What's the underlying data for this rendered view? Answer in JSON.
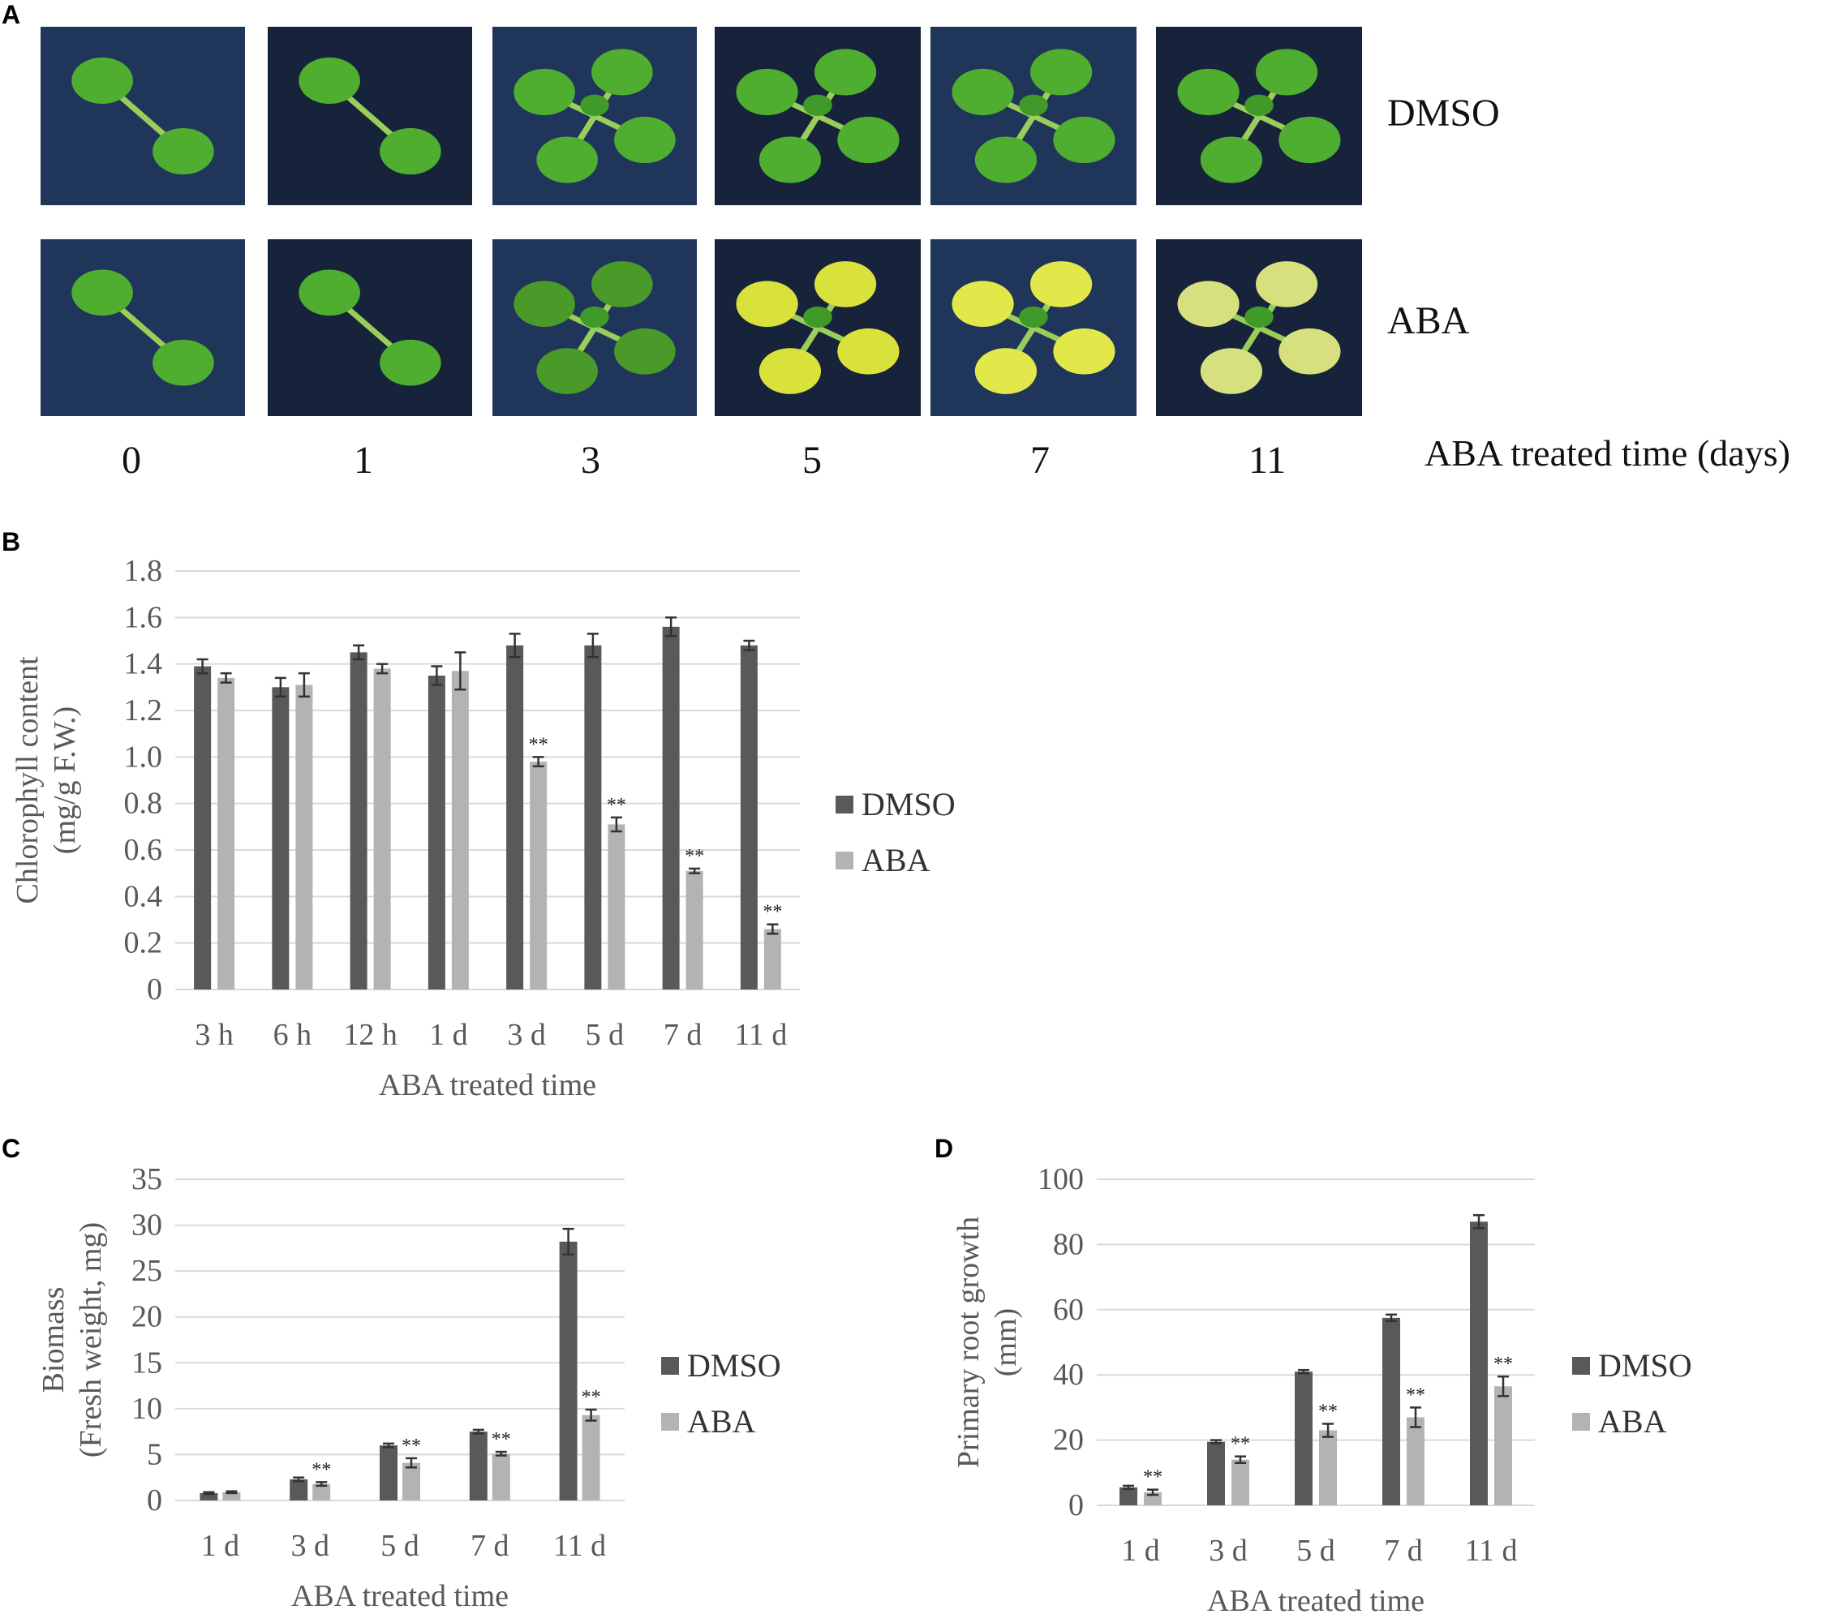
{
  "panelA": {
    "letter": "A",
    "rows": [
      "DMSO",
      "ABA"
    ],
    "days": [
      "0",
      "1",
      "3",
      "5",
      "7",
      "11"
    ],
    "xcaption": "ABA treated time (days)"
  },
  "colors": {
    "DMSO": "#595959",
    "ABA": "#b3b3b3",
    "grid": "#d9d9d9",
    "axis_text": "#595959"
  },
  "chart_data": [
    {
      "panel": "B",
      "type": "bar",
      "categories": [
        "3 h",
        "6 h",
        "12 h",
        "1 d",
        "3 d",
        "5 d",
        "7 d",
        "11 d"
      ],
      "series": [
        {
          "name": "DMSO",
          "values": [
            1.39,
            1.3,
            1.45,
            1.35,
            1.48,
            1.48,
            1.56,
            1.48
          ],
          "errors": [
            0.03,
            0.04,
            0.03,
            0.04,
            0.05,
            0.05,
            0.04,
            0.02
          ]
        },
        {
          "name": "ABA",
          "values": [
            1.34,
            1.31,
            1.38,
            1.37,
            0.98,
            0.71,
            0.51,
            0.26
          ],
          "errors": [
            0.02,
            0.05,
            0.02,
            0.08,
            0.02,
            0.03,
            0.01,
            0.02
          ],
          "sig": [
            "",
            "",
            "",
            "",
            "**",
            "**",
            "**",
            "**"
          ]
        }
      ],
      "ylabel": [
        "Chlorophyll content",
        "(mg/g F.W.)"
      ],
      "xlabel": "ABA treated time",
      "ylim": [
        0,
        1.8
      ],
      "yticks": [
        "0",
        "0.2",
        "0.4",
        "0.6",
        "0.8",
        "1.0",
        "1.2",
        "1.4",
        "1.6",
        "1.8"
      ],
      "grid": true,
      "legend": "right"
    },
    {
      "panel": "C",
      "type": "bar",
      "categories": [
        "1 d",
        "3 d",
        "5 d",
        "7 d",
        "11 d"
      ],
      "series": [
        {
          "name": "DMSO",
          "values": [
            0.8,
            2.3,
            6.0,
            7.5,
            28.2
          ],
          "errors": [
            0.1,
            0.2,
            0.2,
            0.2,
            1.4
          ]
        },
        {
          "name": "ABA",
          "values": [
            0.9,
            1.8,
            4.1,
            5.1,
            9.3
          ],
          "errors": [
            0.1,
            0.2,
            0.5,
            0.2,
            0.6
          ],
          "sig": [
            "",
            "**",
            "**",
            "**",
            "**"
          ]
        }
      ],
      "ylabel": [
        "Biomass",
        "(Fresh weight, mg)"
      ],
      "xlabel": "ABA treated time",
      "ylim": [
        0,
        35
      ],
      "yticks": [
        "0",
        "5",
        "10",
        "15",
        "20",
        "25",
        "30",
        "35"
      ],
      "grid": true,
      "legend": "right"
    },
    {
      "panel": "D",
      "type": "bar",
      "categories": [
        "1 d",
        "3 d",
        "5 d",
        "7 d",
        "11 d"
      ],
      "series": [
        {
          "name": "DMSO",
          "values": [
            5.5,
            19.5,
            41.0,
            57.5,
            87.0
          ],
          "errors": [
            0.5,
            0.5,
            0.5,
            1.0,
            2.0
          ]
        },
        {
          "name": "ABA",
          "values": [
            4.0,
            14.0,
            23.0,
            27.0,
            36.5
          ],
          "errors": [
            0.8,
            1.0,
            2.0,
            3.0,
            3.0
          ],
          "sig": [
            "**",
            "**",
            "**",
            "**",
            "**"
          ]
        }
      ],
      "ylabel": [
        "Primary root growth",
        "(mm)"
      ],
      "xlabel": "ABA treated time",
      "ylim": [
        0,
        100
      ],
      "yticks": [
        "0",
        "20",
        "40",
        "60",
        "80",
        "100"
      ],
      "grid": true,
      "legend": "right"
    }
  ]
}
